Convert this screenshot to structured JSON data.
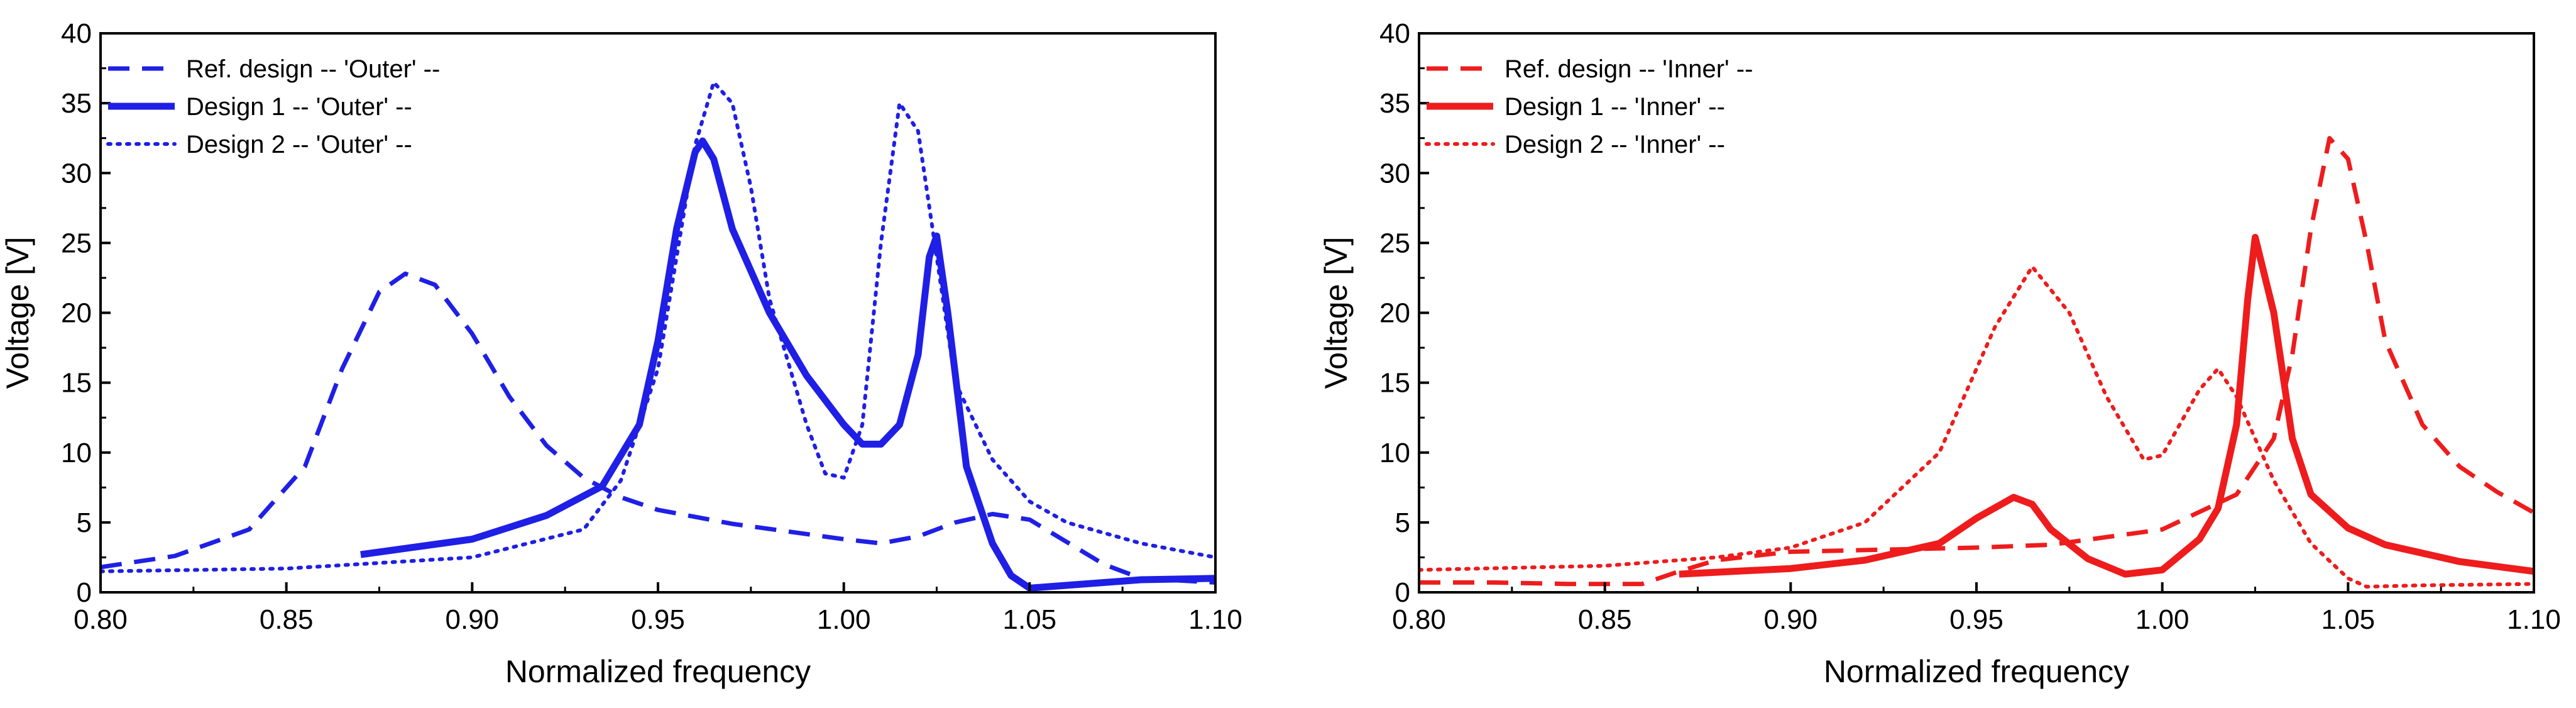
{
  "chart_data": [
    {
      "type": "line",
      "id": "outer",
      "xlabel": "Normalized frequency",
      "ylabel": "Voltage [V]",
      "xlim": [
        0.8,
        1.1
      ],
      "ylim": [
        0,
        40
      ],
      "xticks": [
        "0.80",
        "0.85",
        "0.90",
        "0.95",
        "1.00",
        "1.05",
        "1.10"
      ],
      "yticks": [
        "0",
        "5",
        "10",
        "15",
        "20",
        "25",
        "30",
        "35",
        "40"
      ],
      "legend_position": "top-left",
      "series": [
        {
          "name": "Ref. design -- 'Outer' --",
          "color": "#1f1fe6",
          "style": "dashed",
          "points": [
            [
              0.8,
              1.8
            ],
            [
              0.82,
              2.6
            ],
            [
              0.84,
              4.5
            ],
            [
              0.855,
              9
            ],
            [
              0.865,
              16
            ],
            [
              0.875,
              21.5
            ],
            [
              0.882,
              22.8
            ],
            [
              0.89,
              22
            ],
            [
              0.9,
              18.5
            ],
            [
              0.91,
              14
            ],
            [
              0.92,
              10.5
            ],
            [
              0.93,
              8.2
            ],
            [
              0.94,
              6.8
            ],
            [
              0.95,
              5.9
            ],
            [
              0.97,
              4.9
            ],
            [
              1.0,
              3.8
            ],
            [
              1.01,
              3.5
            ],
            [
              1.02,
              4
            ],
            [
              1.03,
              5
            ],
            [
              1.04,
              5.6
            ],
            [
              1.05,
              5.2
            ],
            [
              1.06,
              3.6
            ],
            [
              1.07,
              2
            ],
            [
              1.08,
              1
            ],
            [
              1.1,
              0.7
            ]
          ]
        },
        {
          "name": "Design 1 -- 'Outer' --",
          "color": "#1f1fe6",
          "style": "solid",
          "points": [
            [
              0.87,
              2.7
            ],
            [
              0.9,
              3.8
            ],
            [
              0.92,
              5.5
            ],
            [
              0.935,
              7.6
            ],
            [
              0.945,
              12
            ],
            [
              0.95,
              18
            ],
            [
              0.955,
              26
            ],
            [
              0.96,
              31.5
            ],
            [
              0.962,
              32.3
            ],
            [
              0.965,
              31
            ],
            [
              0.97,
              26
            ],
            [
              0.98,
              20
            ],
            [
              0.99,
              15.5
            ],
            [
              1.0,
              12
            ],
            [
              1.005,
              10.6
            ],
            [
              1.01,
              10.6
            ],
            [
              1.015,
              12
            ],
            [
              1.02,
              17
            ],
            [
              1.023,
              24
            ],
            [
              1.025,
              25.5
            ],
            [
              1.028,
              20
            ],
            [
              1.033,
              9
            ],
            [
              1.04,
              3.5
            ],
            [
              1.045,
              1.2
            ],
            [
              1.05,
              0.3
            ],
            [
              1.06,
              0.5
            ],
            [
              1.08,
              0.9
            ],
            [
              1.1,
              1
            ]
          ]
        },
        {
          "name": "Design 2 -- 'Outer' --",
          "color": "#1f1fe6",
          "style": "dotted",
          "points": [
            [
              0.8,
              1.5
            ],
            [
              0.85,
              1.7
            ],
            [
              0.9,
              2.5
            ],
            [
              0.93,
              4.5
            ],
            [
              0.94,
              8
            ],
            [
              0.95,
              16
            ],
            [
              0.955,
              24
            ],
            [
              0.96,
              32
            ],
            [
              0.965,
              36.5
            ],
            [
              0.97,
              35
            ],
            [
              0.975,
              29
            ],
            [
              0.98,
              21
            ],
            [
              0.99,
              12
            ],
            [
              0.995,
              8.5
            ],
            [
              1.0,
              8.2
            ],
            [
              1.005,
              12
            ],
            [
              1.01,
              25
            ],
            [
              1.015,
              35
            ],
            [
              1.02,
              33
            ],
            [
              1.025,
              24
            ],
            [
              1.03,
              15
            ],
            [
              1.04,
              9.5
            ],
            [
              1.05,
              6.5
            ],
            [
              1.06,
              5
            ],
            [
              1.08,
              3.5
            ],
            [
              1.1,
              2.5
            ]
          ]
        }
      ]
    },
    {
      "type": "line",
      "id": "inner",
      "xlabel": "Normalized frequency",
      "ylabel": "Voltage [V]",
      "xlim": [
        0.8,
        1.1
      ],
      "ylim": [
        0,
        40
      ],
      "xticks": [
        "0.80",
        "0.85",
        "0.90",
        "0.95",
        "1.00",
        "1.05",
        "1.10"
      ],
      "yticks": [
        "0",
        "5",
        "10",
        "15",
        "20",
        "25",
        "30",
        "35",
        "40"
      ],
      "legend_position": "top-left",
      "series": [
        {
          "name": "Ref. design -- 'Inner' --",
          "color": "#ee1c1c",
          "style": "dashed",
          "points": [
            [
              0.8,
              0.7
            ],
            [
              0.82,
              0.7
            ],
            [
              0.84,
              0.6
            ],
            [
              0.86,
              0.6
            ],
            [
              0.87,
              1.5
            ],
            [
              0.88,
              2.3
            ],
            [
              0.9,
              2.9
            ],
            [
              0.95,
              3.2
            ],
            [
              0.97,
              3.4
            ],
            [
              1.0,
              4.5
            ],
            [
              1.02,
              7
            ],
            [
              1.03,
              11
            ],
            [
              1.035,
              17
            ],
            [
              1.04,
              26
            ],
            [
              1.045,
              32.5
            ],
            [
              1.05,
              31
            ],
            [
              1.055,
              25
            ],
            [
              1.06,
              18
            ],
            [
              1.07,
              12
            ],
            [
              1.08,
              9
            ],
            [
              1.09,
              7.2
            ],
            [
              1.1,
              5.7
            ]
          ]
        },
        {
          "name": "Design 1 -- 'Inner' --",
          "color": "#ee1c1c",
          "style": "solid",
          "points": [
            [
              0.87,
              1.3
            ],
            [
              0.9,
              1.7
            ],
            [
              0.92,
              2.3
            ],
            [
              0.94,
              3.5
            ],
            [
              0.95,
              5.3
            ],
            [
              0.96,
              6.8
            ],
            [
              0.965,
              6.3
            ],
            [
              0.97,
              4.5
            ],
            [
              0.98,
              2.4
            ],
            [
              0.99,
              1.3
            ],
            [
              1.0,
              1.6
            ],
            [
              1.01,
              3.8
            ],
            [
              1.015,
              6
            ],
            [
              1.02,
              12
            ],
            [
              1.023,
              21
            ],
            [
              1.025,
              25.4
            ],
            [
              1.03,
              20
            ],
            [
              1.035,
              11
            ],
            [
              1.04,
              7
            ],
            [
              1.05,
              4.6
            ],
            [
              1.06,
              3.4
            ],
            [
              1.08,
              2.2
            ],
            [
              1.1,
              1.5
            ]
          ]
        },
        {
          "name": "Design 2 -- 'Inner' --",
          "color": "#ee1c1c",
          "style": "dotted",
          "points": [
            [
              0.8,
              1.6
            ],
            [
              0.85,
              1.9
            ],
            [
              0.88,
              2.5
            ],
            [
              0.9,
              3.2
            ],
            [
              0.92,
              5
            ],
            [
              0.94,
              10
            ],
            [
              0.955,
              19
            ],
            [
              0.965,
              23.3
            ],
            [
              0.975,
              20
            ],
            [
              0.985,
              14
            ],
            [
              0.995,
              9.5
            ],
            [
              1.0,
              9.8
            ],
            [
              1.01,
              14.5
            ],
            [
              1.015,
              16
            ],
            [
              1.02,
              14
            ],
            [
              1.03,
              8
            ],
            [
              1.04,
              3.5
            ],
            [
              1.05,
              1
            ],
            [
              1.055,
              0.4
            ],
            [
              1.07,
              0.5
            ],
            [
              1.1,
              0.6
            ]
          ]
        }
      ]
    }
  ]
}
